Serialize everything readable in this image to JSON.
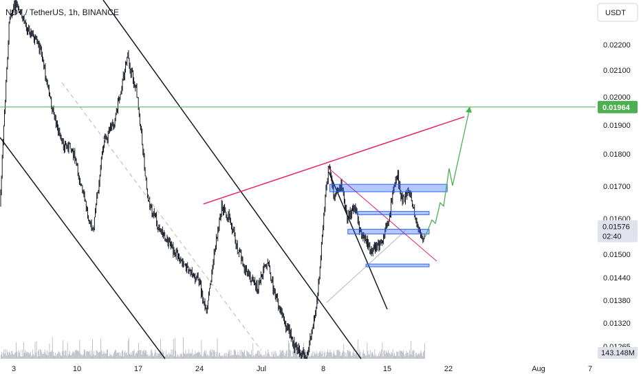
{
  "chart_data": {
    "type": "candlestick",
    "title": "NOT / TetherUS, 1h, BINANCE",
    "currency_button": "USDT",
    "x_ticks": [
      "3",
      "10",
      "17",
      "24",
      "Jul",
      "8",
      "15",
      "22",
      "Aug",
      "7"
    ],
    "y_ticks": [
      "0.02200",
      "0.02100",
      "0.02000",
      "0.01900",
      "0.01800",
      "0.01700",
      "0.01600",
      "0.01500",
      "0.01440",
      "0.01380",
      "0.01320",
      "0.01265"
    ],
    "ylim": [
      0.0124,
      0.0231
    ],
    "horizontal_level": {
      "value": "0.01964",
      "color": "#4caf50"
    },
    "last_price": {
      "value": "0.01576",
      "countdown": "02:40"
    },
    "volume_label": "143.148M",
    "resistance_trendline": {
      "color": "#e91e63",
      "from": [
        "Jun 24",
        0.01645
      ],
      "to": [
        "Jul 21",
        0.0191
      ]
    },
    "projected_path_color": "#4caf50",
    "zones": [
      {
        "from": "Jul 8",
        "to": "Jul 21",
        "top": 0.01706,
        "bottom": 0.01683,
        "color": "#2962ff"
      },
      {
        "from": "Jul 11",
        "to": "Jul 19",
        "top": 0.01622,
        "bottom": 0.01612,
        "color": "#2962ff"
      },
      {
        "from": "Jul 10",
        "to": "Jul 19",
        "top": 0.0157,
        "bottom": 0.01557,
        "color": "#2962ff"
      },
      {
        "from": "Jul 12",
        "to": "Jul 19",
        "top": 0.01475,
        "bottom": 0.01468,
        "color": "#2962ff"
      }
    ],
    "grid": false
  }
}
